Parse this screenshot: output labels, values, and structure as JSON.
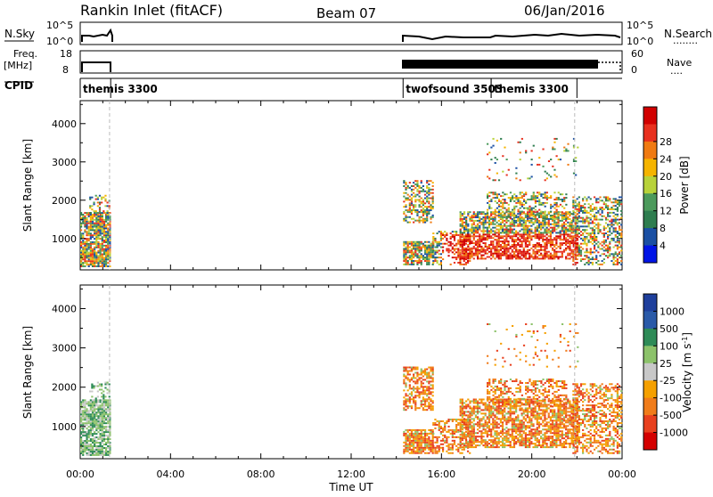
{
  "header": {
    "title": "Rankin Inlet (fitACF)",
    "beam": "Beam 07",
    "date": "06/Jan/2016"
  },
  "strips": {
    "nsky_label": "N.Sky",
    "nsearch_label": "N.Search",
    "nsky_ticks": [
      "10^5",
      "10^0"
    ],
    "nsearch_ticks": [
      "10^5",
      "10^0"
    ],
    "freq_label": "Freq.",
    "freq_unit": "[MHz]",
    "freq_ticks": [
      "18",
      "8"
    ],
    "nave_label": "Nave",
    "nave_ticks": [
      "60",
      "0"
    ],
    "cpid_label": "CPID",
    "cpid_segments": [
      {
        "label": "themis 3300",
        "start_h": 0.0,
        "end_h": 1.35
      },
      {
        "label": "twofsound 3503",
        "start_h": 14.3,
        "end_h": 18.2
      },
      {
        "label": "themis 3300",
        "start_h": 18.2,
        "end_h": 22.0
      }
    ]
  },
  "colors": {
    "power_scale": [
      "#0014e6",
      "#1a4fa3",
      "#2e7d4f",
      "#4c9a5c",
      "#b8d23a",
      "#f5b400",
      "#f07a12",
      "#e8301e",
      "#d10000"
    ],
    "velocity_scale": [
      "#1e3f9c",
      "#2a5aa8",
      "#2e8b57",
      "#8cc26a",
      "#c8c8c8",
      "#f5a000",
      "#f07c1a",
      "#e8401e",
      "#d40000"
    ]
  },
  "chart_data": [
    {
      "type": "heatmap",
      "title": "",
      "xlabel": "Time UT",
      "ylabel": "Slant Range [km]",
      "xlim": [
        0,
        24
      ],
      "ylim": [
        180,
        4600
      ],
      "x_tick_labels": [
        "00:00",
        "04:00",
        "08:00",
        "12:00",
        "16:00",
        "20:00",
        "00:00"
      ],
      "y_tick_labels": [
        "1000",
        "2000",
        "3000",
        "4000"
      ],
      "colorbar": {
        "label": "Power [dB]",
        "ticks": [
          "4",
          "8",
          "12",
          "16",
          "20",
          "24",
          "28"
        ],
        "range": [
          0,
          30
        ]
      },
      "data_windows_h": [
        [
          0.0,
          1.35
        ],
        [
          14.3,
          24.0
        ]
      ]
    },
    {
      "type": "heatmap",
      "title": "",
      "xlabel": "Time UT",
      "ylabel": "Slant Range [km]",
      "xlim": [
        0,
        24
      ],
      "ylim": [
        180,
        4600
      ],
      "x_tick_labels": [
        "00:00",
        "04:00",
        "08:00",
        "12:00",
        "16:00",
        "20:00",
        "00:00"
      ],
      "y_tick_labels": [
        "1000",
        "2000",
        "3000",
        "4000"
      ],
      "colorbar": {
        "label": "Velocity [m s^-1]",
        "ticks": [
          "1000",
          "500",
          "100",
          "25",
          "-25",
          "-100",
          "-500",
          "-1000"
        ]
      },
      "data_windows_h": [
        [
          0.0,
          1.35
        ],
        [
          14.3,
          24.0
        ]
      ]
    }
  ]
}
